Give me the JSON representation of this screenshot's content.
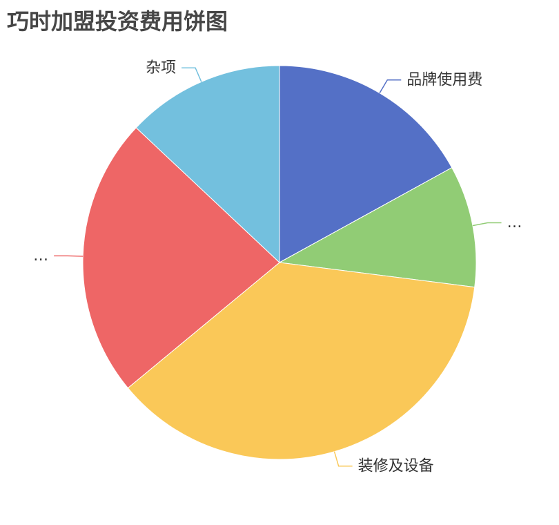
{
  "chart_data": {
    "type": "pie",
    "title": "巧时加盟投资费用饼图",
    "slices": [
      {
        "label": "品牌使用费",
        "value": 17,
        "color": "#5470c6"
      },
      {
        "label": "…",
        "value": 10,
        "color": "#91cc75"
      },
      {
        "label": "装修及设备",
        "value": 37,
        "color": "#fac858"
      },
      {
        "label": "…",
        "value": 23,
        "color": "#ee6666"
      },
      {
        "label": "杂项",
        "value": 13,
        "color": "#73c0de"
      }
    ]
  }
}
